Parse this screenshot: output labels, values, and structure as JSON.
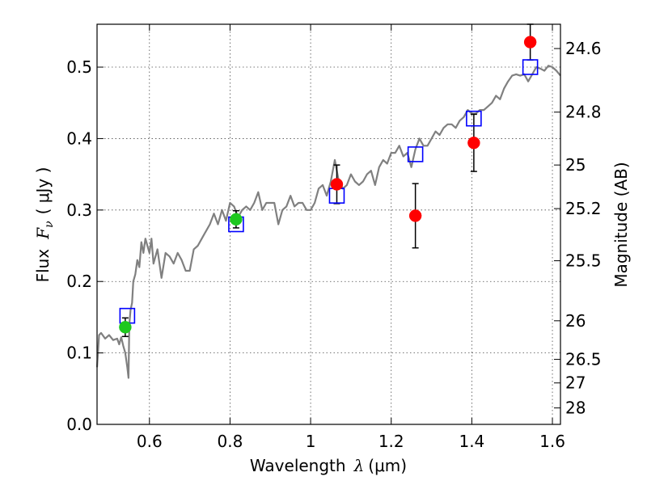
{
  "chart_data": {
    "type": "scatter",
    "xlabel_prefix": "Wavelength",
    "xlabel_symbol": "λ",
    "xlabel_unit": "(μm)",
    "ylabel_prefix": "Flux",
    "ylabel_symbol": "F",
    "ylabel_subscript": "ν",
    "ylabel_unit": "( μJy )",
    "y2label": "Magnitude (AB)",
    "xlim": [
      0.47,
      1.62
    ],
    "ylim": [
      0.0,
      0.56
    ],
    "x_ticks": [
      0.6,
      0.8,
      1.0,
      1.2,
      1.4,
      1.6
    ],
    "x_tick_labels": [
      "0.6",
      "0.8",
      "1",
      "1.2",
      "1.4",
      "1.6"
    ],
    "y_ticks": [
      0.0,
      0.1,
      0.2,
      0.3,
      0.4,
      0.5
    ],
    "y_tick_labels": [
      "0.0",
      "0.1",
      "0.2",
      "0.3",
      "0.4",
      "0.5"
    ],
    "mag_ticks": [
      {
        "label": "24.6",
        "flux": 0.526
      },
      {
        "label": "24.8",
        "flux": 0.437
      },
      {
        "label": "25",
        "flux": 0.363
      },
      {
        "label": "25.2",
        "flux": 0.302
      },
      {
        "label": "25.5",
        "flux": 0.229
      },
      {
        "label": "26",
        "flux": 0.145
      },
      {
        "label": "26.5",
        "flux": 0.091
      },
      {
        "label": "27",
        "flux": 0.058
      },
      {
        "label": "28",
        "flux": 0.023
      }
    ],
    "grid": true,
    "colors": {
      "model": "#808080",
      "detection_red": "#ff0000",
      "detection_green": "#1ec81e",
      "model_band": "#0000ff",
      "errorbar": "#000000"
    },
    "series": [
      {
        "name": "model_spectrum",
        "kind": "line",
        "x": [
          0.47,
          0.475,
          0.48,
          0.49,
          0.5,
          0.51,
          0.52,
          0.525,
          0.53,
          0.535,
          0.54,
          0.545,
          0.548,
          0.55,
          0.553,
          0.557,
          0.56,
          0.565,
          0.57,
          0.575,
          0.58,
          0.585,
          0.59,
          0.6,
          0.605,
          0.61,
          0.62,
          0.625,
          0.63,
          0.64,
          0.65,
          0.66,
          0.67,
          0.68,
          0.69,
          0.7,
          0.71,
          0.72,
          0.73,
          0.74,
          0.75,
          0.76,
          0.77,
          0.78,
          0.79,
          0.8,
          0.81,
          0.82,
          0.83,
          0.84,
          0.85,
          0.86,
          0.87,
          0.88,
          0.89,
          0.9,
          0.91,
          0.92,
          0.93,
          0.94,
          0.95,
          0.96,
          0.97,
          0.98,
          0.99,
          1.0,
          1.01,
          1.02,
          1.03,
          1.04,
          1.05,
          1.06,
          1.07,
          1.08,
          1.09,
          1.1,
          1.11,
          1.12,
          1.13,
          1.14,
          1.15,
          1.16,
          1.17,
          1.18,
          1.19,
          1.2,
          1.21,
          1.22,
          1.23,
          1.24,
          1.25,
          1.26,
          1.27,
          1.28,
          1.29,
          1.3,
          1.31,
          1.32,
          1.33,
          1.34,
          1.35,
          1.36,
          1.37,
          1.38,
          1.39,
          1.4,
          1.41,
          1.42,
          1.43,
          1.44,
          1.45,
          1.46,
          1.47,
          1.48,
          1.49,
          1.5,
          1.51,
          1.52,
          1.53,
          1.54,
          1.55,
          1.56,
          1.57,
          1.58,
          1.59,
          1.6,
          1.61,
          1.62
        ],
        "y": [
          0.08,
          0.125,
          0.128,
          0.12,
          0.125,
          0.118,
          0.12,
          0.112,
          0.122,
          0.11,
          0.1,
          0.08,
          0.065,
          0.14,
          0.16,
          0.17,
          0.2,
          0.21,
          0.23,
          0.22,
          0.255,
          0.24,
          0.26,
          0.24,
          0.26,
          0.225,
          0.245,
          0.225,
          0.205,
          0.24,
          0.235,
          0.225,
          0.24,
          0.23,
          0.215,
          0.215,
          0.245,
          0.25,
          0.26,
          0.27,
          0.28,
          0.295,
          0.28,
          0.3,
          0.285,
          0.31,
          0.305,
          0.29,
          0.3,
          0.305,
          0.3,
          0.31,
          0.325,
          0.3,
          0.31,
          0.31,
          0.31,
          0.28,
          0.3,
          0.305,
          0.32,
          0.305,
          0.31,
          0.31,
          0.3,
          0.3,
          0.31,
          0.33,
          0.335,
          0.32,
          0.34,
          0.37,
          0.34,
          0.33,
          0.335,
          0.35,
          0.34,
          0.335,
          0.34,
          0.35,
          0.355,
          0.335,
          0.36,
          0.37,
          0.365,
          0.38,
          0.38,
          0.39,
          0.375,
          0.38,
          0.36,
          0.385,
          0.4,
          0.39,
          0.39,
          0.4,
          0.41,
          0.405,
          0.415,
          0.42,
          0.42,
          0.415,
          0.425,
          0.43,
          0.44,
          0.435,
          0.435,
          0.44,
          0.44,
          0.445,
          0.45,
          0.46,
          0.455,
          0.47,
          0.48,
          0.488,
          0.49,
          0.488,
          0.49,
          0.48,
          0.49,
          0.5,
          0.498,
          0.495,
          0.502,
          0.5,
          0.495,
          0.488
        ]
      },
      {
        "name": "model_band_flux",
        "kind": "open_square",
        "x": [
          0.545,
          0.815,
          1.065,
          1.26,
          1.405,
          1.545
        ],
        "y": [
          0.152,
          0.28,
          0.32,
          0.378,
          0.428,
          0.5
        ]
      },
      {
        "name": "observed_green",
        "kind": "filled_circle",
        "x": [
          0.54,
          0.815
        ],
        "y": [
          0.136,
          0.287
        ],
        "yerr": [
          0.013,
          0.012
        ]
      },
      {
        "name": "observed_red",
        "kind": "filled_circle",
        "x": [
          1.065,
          1.26,
          1.405,
          1.545
        ],
        "y": [
          0.336,
          0.292,
          0.394,
          0.535
        ],
        "yerr": [
          0.027,
          0.045,
          0.04,
          0.025
        ]
      }
    ]
  }
}
